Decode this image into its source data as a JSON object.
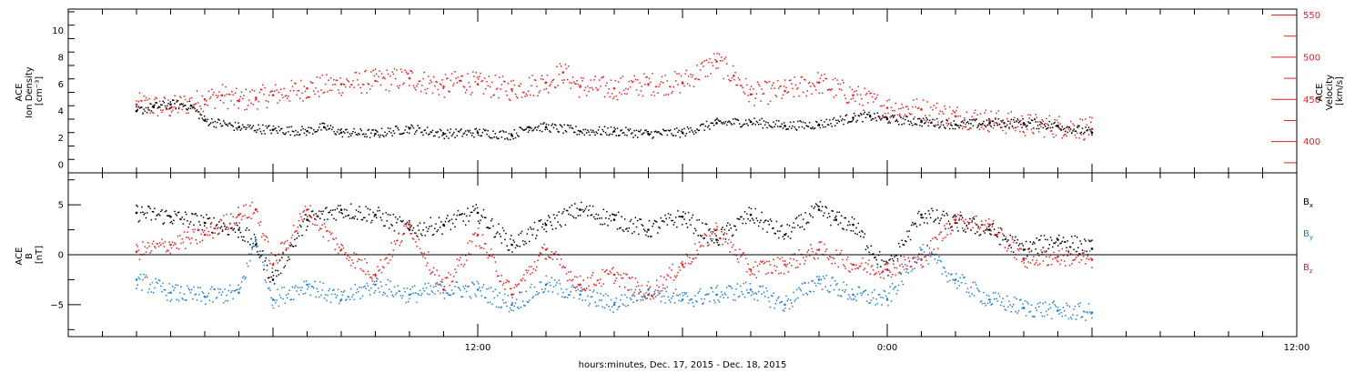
{
  "chart_data": {
    "type": "scatter",
    "xlabel": "hours:minutes, Dec. 17, 2015 - Dec. 18, 2015",
    "x_axis": {
      "unit": "hours since 2015-12-17 00:00",
      "range": [
        0,
        36
      ],
      "tick_labels": [
        {
          "x": 12,
          "label": "12:00"
        },
        {
          "x": 24,
          "label": "0:00"
        },
        {
          "x": 36,
          "label": "12:00"
        }
      ]
    },
    "panels": [
      {
        "id": "plasma",
        "left_axis": {
          "label_lines": [
            "ACE",
            "Ion Density",
            "[cm⁻³]"
          ],
          "ylim": [
            -0.6,
            11.6
          ],
          "ticks": [
            0,
            2,
            4,
            6,
            8,
            10
          ],
          "tick_labels": [
            "0",
            "2",
            "4",
            "6",
            "8",
            "10"
          ],
          "color": "#000000"
        },
        "right_axis": {
          "label_lines": [
            "ACE",
            "Velocity",
            "[km/s]"
          ],
          "ylim": [
            363,
            557
          ],
          "ticks": [
            400,
            450,
            500,
            550
          ],
          "tick_labels": [
            "400",
            "450",
            "500",
            "550"
          ],
          "color": "#e8201f"
        },
        "series": [
          {
            "name": "Ion Density",
            "axis": "left",
            "color": "#000000",
            "x": [
              2,
              2.5,
              3,
              3.6,
              4,
              5,
              6,
              7,
              7.5,
              8,
              9,
              10,
              11,
              12,
              13,
              13.5,
              14,
              15,
              16,
              17,
              18,
              19,
              20,
              21,
              22,
              23,
              23.5,
              24,
              25,
              26,
              27,
              28,
              29,
              30
            ],
            "y": [
              4.0,
              4.3,
              4.5,
              4.4,
              3.3,
              2.8,
              2.6,
              2.5,
              2.8,
              2.4,
              2.3,
              2.7,
              2.3,
              2.4,
              2.2,
              2.8,
              2.8,
              2.5,
              2.5,
              2.3,
              2.4,
              3.1,
              3.2,
              2.9,
              3.0,
              3.5,
              3.6,
              3.4,
              3.2,
              3.0,
              3.1,
              3.1,
              2.9,
              2.4
            ]
          },
          {
            "name": "Velocity",
            "axis": "right",
            "color": "#e8201f",
            "x": [
              2,
              2.5,
              3,
              4,
              4.5,
              5,
              5.5,
              6,
              7,
              8,
              9,
              10,
              11,
              11.5,
              12,
              13,
              14,
              14.5,
              15,
              16,
              17,
              18,
              19,
              19.5,
              20,
              21,
              22,
              23,
              24,
              25,
              26,
              27,
              28,
              29,
              30
            ],
            "y": [
              444,
              442,
              440,
              450,
              455,
              448,
              452,
              455,
              463,
              468,
              472,
              475,
              465,
              472,
              468,
              462,
              470,
              482,
              465,
              463,
              468,
              470,
              495,
              478,
              456,
              460,
              470,
              455,
              440,
              438,
              430,
              425,
              420,
              418,
              415
            ]
          }
        ]
      },
      {
        "id": "imf",
        "left_axis": {
          "label_lines": [
            "ACE",
            "B",
            "[nT]"
          ],
          "ylim": [
            -8.2,
            8.2
          ],
          "ticks": [
            -5,
            0,
            5
          ],
          "tick_labels": [
            "−5",
            "0",
            "5"
          ],
          "color": "#000000"
        },
        "zero_line": 0,
        "legend": {
          "placement": "right"
        },
        "series": [
          {
            "name": "B",
            "subscript": "x",
            "color": "#000000",
            "x": [
              2,
              3,
              4,
              5,
              5.5,
              6,
              7,
              8,
              9,
              10,
              11,
              12,
              13,
              14,
              15,
              16,
              17,
              18,
              19,
              20,
              21,
              22,
              22.5,
              23,
              24,
              25,
              26,
              27,
              28,
              29,
              30
            ],
            "y": [
              4.2,
              3.8,
              3.2,
              2.5,
              1.0,
              -2.5,
              3.5,
              4.5,
              4.0,
              2.5,
              3.0,
              4.2,
              1.0,
              3.0,
              4.5,
              3.5,
              2.5,
              3.8,
              1.5,
              4.0,
              2.0,
              4.5,
              3.5,
              3.0,
              -1.5,
              4.0,
              3.2,
              2.5,
              0.5,
              1.5,
              0.6
            ]
          },
          {
            "name": "B",
            "subscript": "y",
            "color": "#1f7fd0",
            "x": [
              2,
              3,
              4,
              5,
              5.5,
              6,
              7,
              8,
              9,
              10,
              11,
              12,
              13,
              14,
              15,
              16,
              17,
              18,
              19,
              20,
              21,
              22,
              23,
              24,
              25,
              26,
              27,
              28,
              29,
              30
            ],
            "y": [
              -2.5,
              -3.8,
              -4.2,
              -3.8,
              1.5,
              -4.5,
              -3.0,
              -4.5,
              -3.0,
              -4.0,
              -3.5,
              -3.5,
              -5.0,
              -3.0,
              -4.0,
              -5.0,
              -3.5,
              -4.5,
              -4.0,
              -3.5,
              -5.0,
              -2.5,
              -4.0,
              -4.5,
              0.5,
              -2.5,
              -4.5,
              -5.3,
              -5.6,
              -5.8
            ]
          },
          {
            "name": "B",
            "subscript": "z",
            "color": "#e8201f",
            "x": [
              2,
              3,
              4,
              5,
              5.5,
              6,
              7,
              8,
              9,
              10,
              11,
              12,
              13,
              14,
              15,
              16,
              17,
              18,
              19,
              20,
              21,
              22,
              23,
              24,
              25,
              26,
              27,
              28,
              29,
              30
            ],
            "y": [
              0.3,
              1.0,
              2.0,
              4.0,
              4.5,
              -1.0,
              4.5,
              0.5,
              -2.0,
              3.0,
              -3.5,
              2.0,
              -4.0,
              0.5,
              -3.0,
              -2.0,
              -4.0,
              -1.0,
              2.5,
              -1.5,
              -1.0,
              0.5,
              -1.0,
              -1.5,
              -0.5,
              3.5,
              3.0,
              -0.5,
              -0.2,
              -0.5
            ]
          }
        ]
      }
    ]
  }
}
